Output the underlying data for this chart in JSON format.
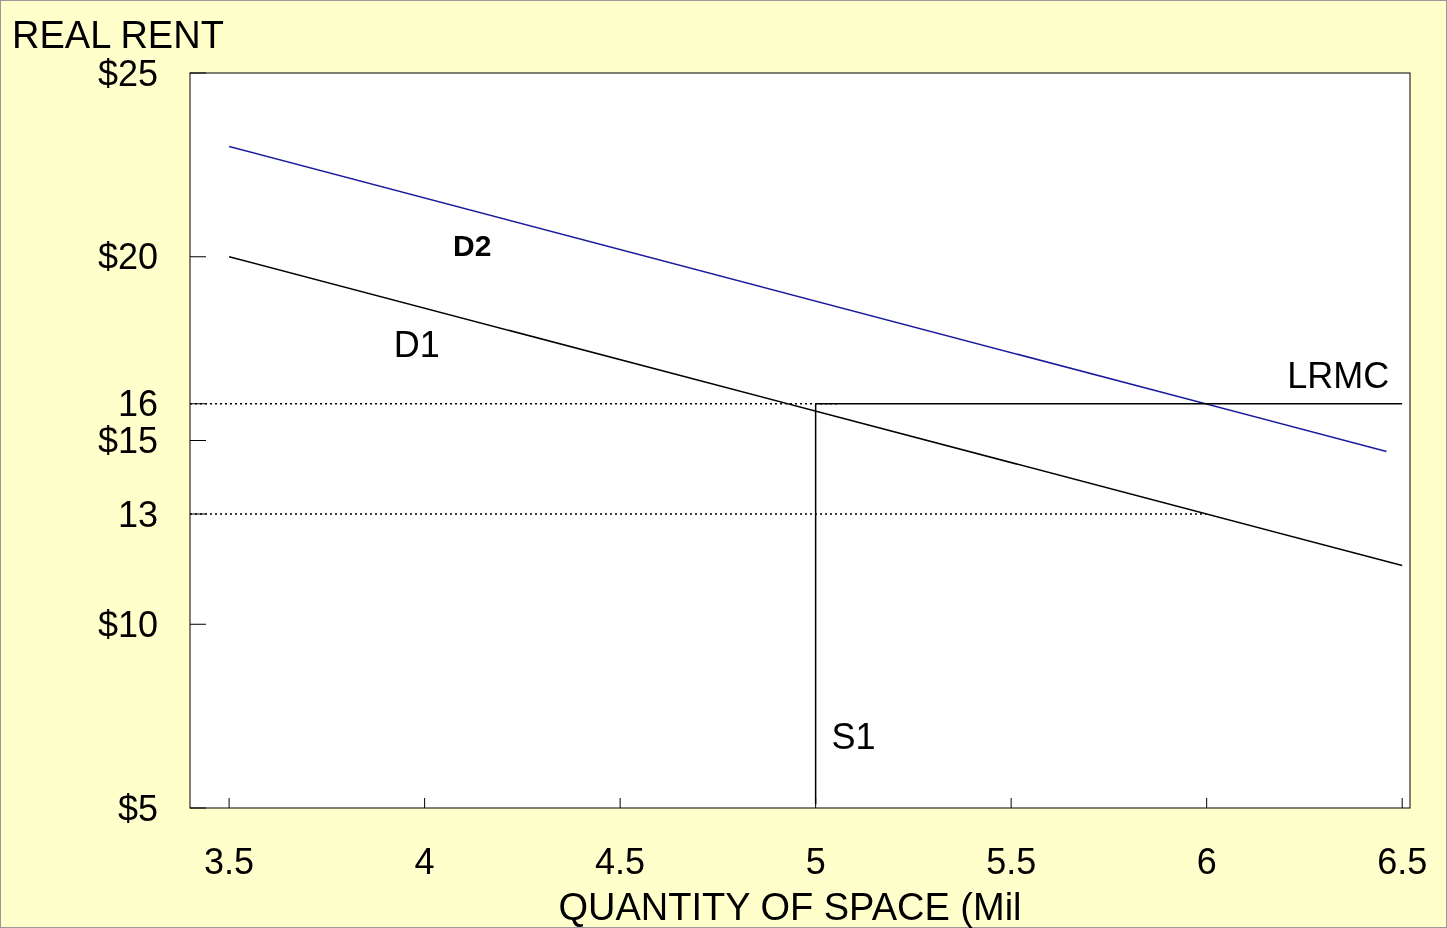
{
  "chart_data": {
    "type": "line",
    "ylabel": "REAL RENT",
    "xlabel": "QUANTITY OF SPACE (Mil",
    "xlim": [
      3.4,
      6.52
    ],
    "xticks": [
      3.5,
      4,
      4.5,
      5,
      5.5,
      6,
      6.5
    ],
    "ylim": [
      5,
      25
    ],
    "yticks": [
      {
        "value": 5,
        "label": "$5"
      },
      {
        "value": 10,
        "label": "$10"
      },
      13,
      {
        "value": 15,
        "label": "$15"
      },
      16,
      {
        "value": 20,
        "label": "$20"
      },
      {
        "value": 25,
        "label": "$25"
      }
    ],
    "grid": false,
    "marker": "none",
    "series": [
      {
        "name": "D1",
        "color": "#000000",
        "x": [
          3.5,
          6.5
        ],
        "values": [
          20.0,
          11.6
        ],
        "line_style": "solid"
      },
      {
        "name": "D2",
        "color": "#1a1a9c",
        "x": [
          3.5,
          6.46
        ],
        "values": [
          23.0,
          14.7
        ],
        "line_style": "solid"
      },
      {
        "name": "LRMC",
        "color": "#000000",
        "x": [
          5.0,
          6.5
        ],
        "values": [
          16,
          16
        ],
        "line_style": "solid"
      },
      {
        "name": "S1",
        "color": "#000000",
        "x": [
          5.0,
          5.0
        ],
        "values": [
          5.1,
          16
        ],
        "line_style": "solid"
      },
      {
        "color": "#000000",
        "x": [
          3.4,
          5.06
        ],
        "values": [
          16,
          16
        ],
        "line_style": "dotted"
      },
      {
        "color": "#000000",
        "x": [
          3.4,
          6.0
        ],
        "values": [
          13,
          13
        ],
        "line_style": "dotted"
      }
    ]
  }
}
